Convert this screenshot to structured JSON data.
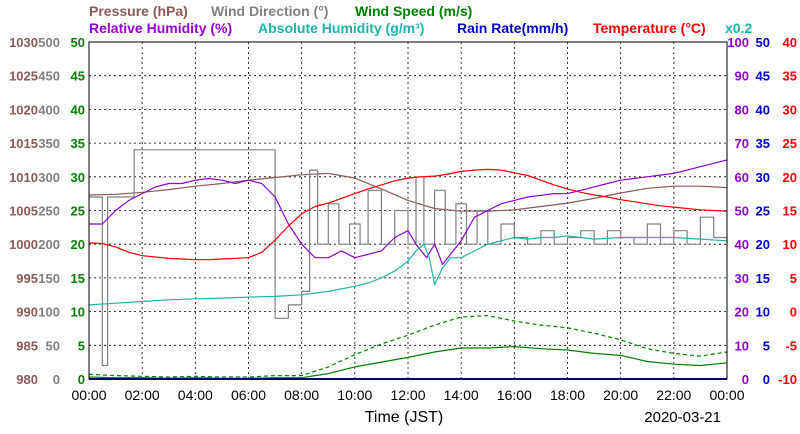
{
  "chart_data": {
    "type": "line",
    "x_ticks": [
      "00:00",
      "02:00",
      "04:00",
      "06:00",
      "08:00",
      "10:00",
      "12:00",
      "14:00",
      "16:00",
      "18:00",
      "20:00",
      "22:00",
      "00:00"
    ],
    "xlabel": "Time (JST)",
    "date": "2020-03-21",
    "legend": [
      {
        "name": "Pressure (hPa)",
        "color": "#8b5a5a",
        "row": 1
      },
      {
        "name": "Wind Direction (°)",
        "color": "#808080",
        "row": 1
      },
      {
        "name": "Wind Speed (m/s)",
        "color": "#008000",
        "row": 1
      },
      {
        "name": "Relative Humidity (%)",
        "color": "#9400d3",
        "row": 2
      },
      {
        "name": "Absolute Humidity (g/m³)",
        "color": "#20b2aa",
        "row": 2,
        "note": "x0.2"
      },
      {
        "name": "Rain Rate(mm/h)",
        "color": "#0000cd",
        "row": 2
      },
      {
        "name": "Temperature (°C)",
        "color": "#ff0000",
        "row": 2
      }
    ],
    "axes": {
      "pressure": {
        "ticks": [
          "1030",
          "1025",
          "1020",
          "1015",
          "1010",
          "1005",
          "1000",
          "995",
          "990",
          "985",
          "980"
        ],
        "range": [
          980,
          1030
        ],
        "color": "#8b5a5a"
      },
      "wind_direction": {
        "ticks": [
          "500",
          "450",
          "400",
          "350",
          "300",
          "250",
          "200",
          "150",
          "100",
          "50",
          "0"
        ],
        "range": [
          0,
          500
        ],
        "color": "#808080"
      },
      "wind_speed": {
        "ticks": [
          "50",
          "45",
          "40",
          "35",
          "30",
          "25",
          "20",
          "15",
          "10",
          "5",
          "0"
        ],
        "range": [
          0,
          50
        ],
        "color": "#008000"
      },
      "relative_humidity": {
        "ticks": [
          "100",
          "90",
          "80",
          "70",
          "60",
          "50",
          "40",
          "30",
          "20",
          "10",
          "0"
        ],
        "range": [
          0,
          100
        ],
        "color": "#9400d3"
      },
      "rain_rate": {
        "ticks": [
          "50",
          "45",
          "40",
          "35",
          "30",
          "25",
          "20",
          "15",
          "10",
          "5",
          "0"
        ],
        "range": [
          0,
          50
        ],
        "color": "#0000cd"
      },
      "temperature": {
        "ticks": [
          "40",
          "35",
          "30",
          "25",
          "20",
          "15",
          "10",
          "5",
          "0",
          "-5",
          "-10"
        ],
        "range": [
          -10,
          40
        ],
        "color": "#ff0000"
      }
    },
    "series": [
      {
        "name": "Pressure (hPa)",
        "axis": "pressure",
        "color": "#8b5a5a",
        "x": [
          0,
          1,
          2,
          3,
          4,
          5,
          6,
          7,
          8,
          9,
          10,
          11,
          12,
          13,
          14,
          15,
          16,
          17,
          18,
          19,
          20,
          21,
          22,
          23,
          24
        ],
        "y": [
          1007.3,
          1007.4,
          1007.7,
          1008.1,
          1008.6,
          1009.0,
          1009.5,
          1009.9,
          1010.3,
          1010.5,
          1009.8,
          1008.2,
          1006.5,
          1005.3,
          1004.9,
          1004.9,
          1005.1,
          1005.6,
          1006.1,
          1006.8,
          1007.6,
          1008.3,
          1008.6,
          1008.6,
          1008.4
        ]
      },
      {
        "name": "Wind Direction (°)",
        "axis": "wind_direction",
        "color": "#808080",
        "x": [
          0,
          0.3,
          0.5,
          0.7,
          1.0,
          1.6,
          1.7,
          2.5,
          3.5,
          4.5,
          5.5,
          6.5,
          6.9,
          7.0,
          7.2,
          7.5,
          8.0,
          8.3,
          8.6,
          9.0,
          9.4,
          9.8,
          10.2,
          10.5,
          11.0,
          11.5,
          12.0,
          12.3,
          12.6,
          13.0,
          13.4,
          13.8,
          14.2,
          14.6,
          15.0,
          15.5,
          16.0,
          16.5,
          17.0,
          17.5,
          18.0,
          18.5,
          19.0,
          19.5,
          20.0,
          20.5,
          21.0,
          21.5,
          22.0,
          22.5,
          23.0,
          23.5,
          24.0
        ],
        "y": [
          270,
          270,
          20,
          270,
          270,
          270,
          340,
          340,
          340,
          340,
          340,
          340,
          340,
          90,
          90,
          110,
          130,
          310,
          200,
          260,
          200,
          230,
          200,
          280,
          200,
          250,
          200,
          300,
          200,
          280,
          200,
          260,
          200,
          250,
          200,
          230,
          210,
          200,
          220,
          200,
          210,
          220,
          200,
          220,
          210,
          200,
          230,
          200,
          220,
          200,
          240,
          210,
          200
        ]
      },
      {
        "name": "Wind Speed (m/s) average",
        "axis": "wind_speed",
        "color": "#008000",
        "x": [
          0,
          1,
          2,
          3,
          4,
          5,
          6,
          7,
          8,
          9,
          10,
          11,
          12,
          13,
          14,
          15,
          16,
          17,
          18,
          19,
          20,
          21,
          22,
          23,
          24
        ],
        "y": [
          0.3,
          0.2,
          0.2,
          0.1,
          0.2,
          0.1,
          0.1,
          0.2,
          0.2,
          0.8,
          1.8,
          2.5,
          3.2,
          4.0,
          4.6,
          4.6,
          4.8,
          4.5,
          4.3,
          3.8,
          3.5,
          2.6,
          2.2,
          2.0,
          2.4
        ]
      },
      {
        "name": "Wind Speed (m/s) gust",
        "axis": "wind_speed",
        "color": "#008000",
        "dashed": true,
        "x": [
          0,
          1,
          2,
          3,
          4,
          5,
          6,
          7,
          8,
          9,
          10,
          11,
          12,
          13,
          14,
          15,
          16,
          17,
          18,
          19,
          20,
          21,
          22,
          23,
          24
        ],
        "y": [
          0.7,
          0.5,
          0.4,
          0.3,
          0.4,
          0.3,
          0.3,
          0.5,
          0.5,
          1.8,
          3.6,
          5.2,
          6.5,
          8.0,
          9.2,
          9.4,
          8.6,
          8.0,
          7.6,
          6.8,
          5.8,
          4.5,
          3.8,
          3.4,
          4.0
        ]
      },
      {
        "name": "Relative Humidity (%)",
        "axis": "relative_humidity",
        "color": "#9400d3",
        "x": [
          0,
          0.5,
          1,
          1.5,
          2,
          2.5,
          3,
          3.5,
          4,
          4.5,
          5,
          5.5,
          6,
          6.5,
          7,
          7.5,
          8,
          8.5,
          9,
          9.5,
          10,
          10.5,
          11,
          11.5,
          12,
          12.3,
          12.7,
          13,
          13.3,
          13.6,
          14,
          14.5,
          15,
          15.5,
          16,
          16.5,
          17,
          17.5,
          18,
          18.5,
          19,
          19.5,
          20,
          20.5,
          21,
          21.5,
          22,
          22.5,
          23,
          23.5,
          24
        ],
        "y": [
          46,
          46,
          50,
          53,
          55,
          57,
          58,
          58,
          59,
          59.5,
          59,
          58,
          59,
          58,
          54,
          46,
          40,
          36,
          36,
          38,
          36,
          37,
          38,
          42,
          44,
          40,
          36,
          40,
          34,
          37,
          41,
          48,
          50,
          52,
          53,
          54,
          54.5,
          55,
          55,
          56,
          57,
          58,
          59,
          59.5,
          60,
          60.5,
          61,
          62,
          63,
          64,
          65
        ]
      },
      {
        "name": "Absolute Humidity (g/m³) x0.2",
        "axis": "relative_humidity",
        "color": "#20b2aa",
        "x": [
          0,
          1,
          2,
          3,
          4,
          5,
          6,
          7,
          8,
          9,
          10,
          10.5,
          11,
          11.5,
          12,
          12.3,
          12.6,
          12.8,
          13,
          13.3,
          13.6,
          14,
          14.5,
          15,
          15.5,
          16,
          16.5,
          17,
          17.5,
          18,
          18.5,
          19,
          20,
          21,
          22,
          23,
          24
        ],
        "y": [
          22,
          22.5,
          23,
          23.5,
          23.8,
          24,
          24.3,
          24.5,
          25,
          26,
          27.5,
          28.5,
          30,
          32,
          35,
          38,
          40,
          36,
          28,
          33,
          36,
          36,
          38,
          40,
          41,
          42,
          41.5,
          42,
          42,
          42.5,
          42,
          41.5,
          42,
          42,
          42,
          41.5,
          41
        ]
      },
      {
        "name": "Rain Rate(mm/h)",
        "axis": "rain_rate",
        "color": "#0000cd",
        "x": [
          0,
          24
        ],
        "y": [
          0,
          0
        ]
      },
      {
        "name": "Temperature (°C)",
        "axis": "temperature",
        "color": "#ff0000",
        "x": [
          0,
          0.5,
          1,
          1.5,
          2,
          2.5,
          3,
          3.5,
          4,
          4.5,
          5,
          5.5,
          6,
          6.5,
          7,
          7.5,
          8,
          8.5,
          9,
          9.5,
          10,
          10.5,
          11,
          11.5,
          12,
          12.5,
          13,
          13.5,
          14,
          14.5,
          15,
          15.5,
          16,
          16.5,
          17,
          17.5,
          18,
          18.5,
          19,
          19.5,
          20,
          20.5,
          21,
          21.5,
          22,
          22.5,
          23,
          23.5,
          24
        ],
        "y": [
          10.2,
          10.1,
          9.6,
          8.8,
          8.3,
          8.1,
          7.9,
          7.8,
          7.7,
          7.7,
          7.8,
          7.9,
          8.0,
          8.8,
          10.6,
          12.7,
          14.5,
          15.6,
          16.1,
          16.8,
          17.5,
          18.2,
          18.8,
          19.4,
          19.8,
          20.0,
          20.1,
          20.4,
          20.8,
          21.0,
          21.1,
          21.0,
          20.6,
          20.2,
          19.5,
          18.8,
          18.2,
          17.7,
          17.3,
          17.0,
          16.6,
          16.3,
          16.0,
          15.7,
          15.5,
          15.3,
          15.1,
          15.0,
          14.9
        ]
      }
    ]
  }
}
